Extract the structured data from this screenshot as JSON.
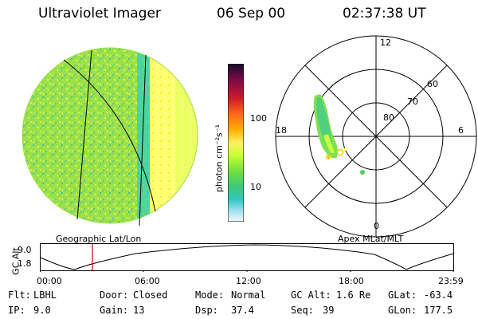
{
  "header": {
    "instrument": "Ultraviolet Imager",
    "date": "06 Sep 00",
    "time": "02:37:38 UT"
  },
  "colorbar": {
    "unit_label": "photon cm⁻²s⁻¹",
    "ticks": [
      "100",
      "10"
    ],
    "scale": "log",
    "colors": [
      "#2a0a3a",
      "#7a0a4a",
      "#d01a2a",
      "#ff5a1a",
      "#ffa500",
      "#ffe000",
      "#ffff60",
      "#c8ff30",
      "#70e040",
      "#3cc878",
      "#30c8c0",
      "#a0e0f0",
      "#e8f4f8"
    ]
  },
  "polar": {
    "mlt_labels": {
      "top": "12",
      "left": "18",
      "right": "6",
      "bottom": "0"
    },
    "lat_labels": [
      "60",
      "70",
      "80"
    ]
  },
  "panels": {
    "geo_label": "Geographic Lat/Lon",
    "apex_label": "Apex MLat/MLT"
  },
  "altitude_plot": {
    "ylabel": "GC Alt",
    "y_ticks": [
      "9.0",
      "1.8"
    ],
    "x_ticks": [
      "00:00",
      "06:00",
      "12:00",
      "18:00",
      "23:59"
    ],
    "current_time_marker": "02:37",
    "line_color": "#000000",
    "marker_color": "#cc0000"
  },
  "info": {
    "row1": [
      {
        "label": "Flt:",
        "value": "LBHL"
      },
      {
        "label": "Door:",
        "value": "Closed"
      },
      {
        "label": "Mode:",
        "value": "Normal"
      },
      {
        "label": "GC Alt:",
        "value": "1.6 Re"
      },
      {
        "label": "GLat:",
        "value": "-63.4"
      }
    ],
    "row2": [
      {
        "label": "IP:",
        "value": "9.0"
      },
      {
        "label": "Gain:",
        "value": "13"
      },
      {
        "label": "Dsp:",
        "value": "37.4"
      },
      {
        "label": "Seq:",
        "value": "39"
      },
      {
        "label": "GLon:",
        "value": "177.5"
      }
    ]
  }
}
